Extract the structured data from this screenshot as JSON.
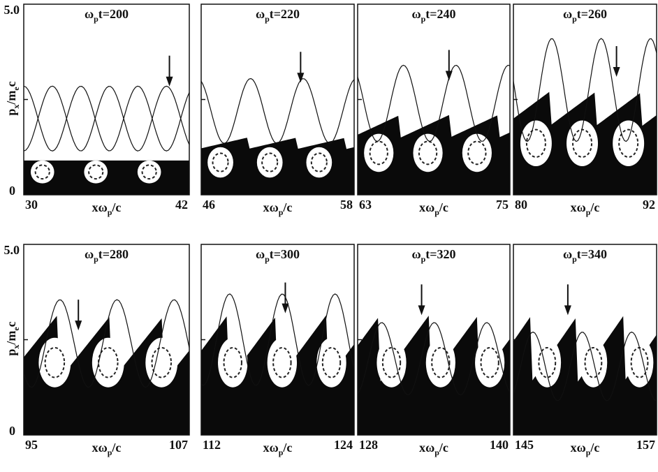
{
  "y_axis": {
    "top": "5.0",
    "bottom": "0",
    "label": {
      "p": "p",
      "sub1": "x",
      "mid": "/m",
      "sub2": "e",
      "end": "c"
    }
  },
  "x_axis_label": {
    "main": "xω",
    "sub": "p",
    "end": "/c"
  },
  "panels": [
    {
      "omega": "ω",
      "sub": "p",
      "time": "t=200",
      "x_start": "30",
      "x_end": "42"
    },
    {
      "omega": "ω",
      "sub": "p",
      "time": "t=220",
      "x_start": "46",
      "x_end": "58"
    },
    {
      "omega": "ω",
      "sub": "p",
      "time": "t=240",
      "x_start": "63",
      "x_end": "75"
    },
    {
      "omega": "ω",
      "sub": "p",
      "time": "t=260",
      "x_start": "80",
      "x_end": "92"
    },
    {
      "omega": "ω",
      "sub": "p",
      "time": "t=280",
      "x_start": "95",
      "x_end": "107"
    },
    {
      "omega": "ω",
      "sub": "p",
      "time": "t=300",
      "x_start": "112",
      "x_end": "124"
    },
    {
      "omega": "ω",
      "sub": "p",
      "time": "t=320",
      "x_start": "128",
      "x_end": "140"
    },
    {
      "omega": "ω",
      "sub": "p",
      "time": "t=340",
      "x_start": "145",
      "x_end": "157"
    }
  ]
}
